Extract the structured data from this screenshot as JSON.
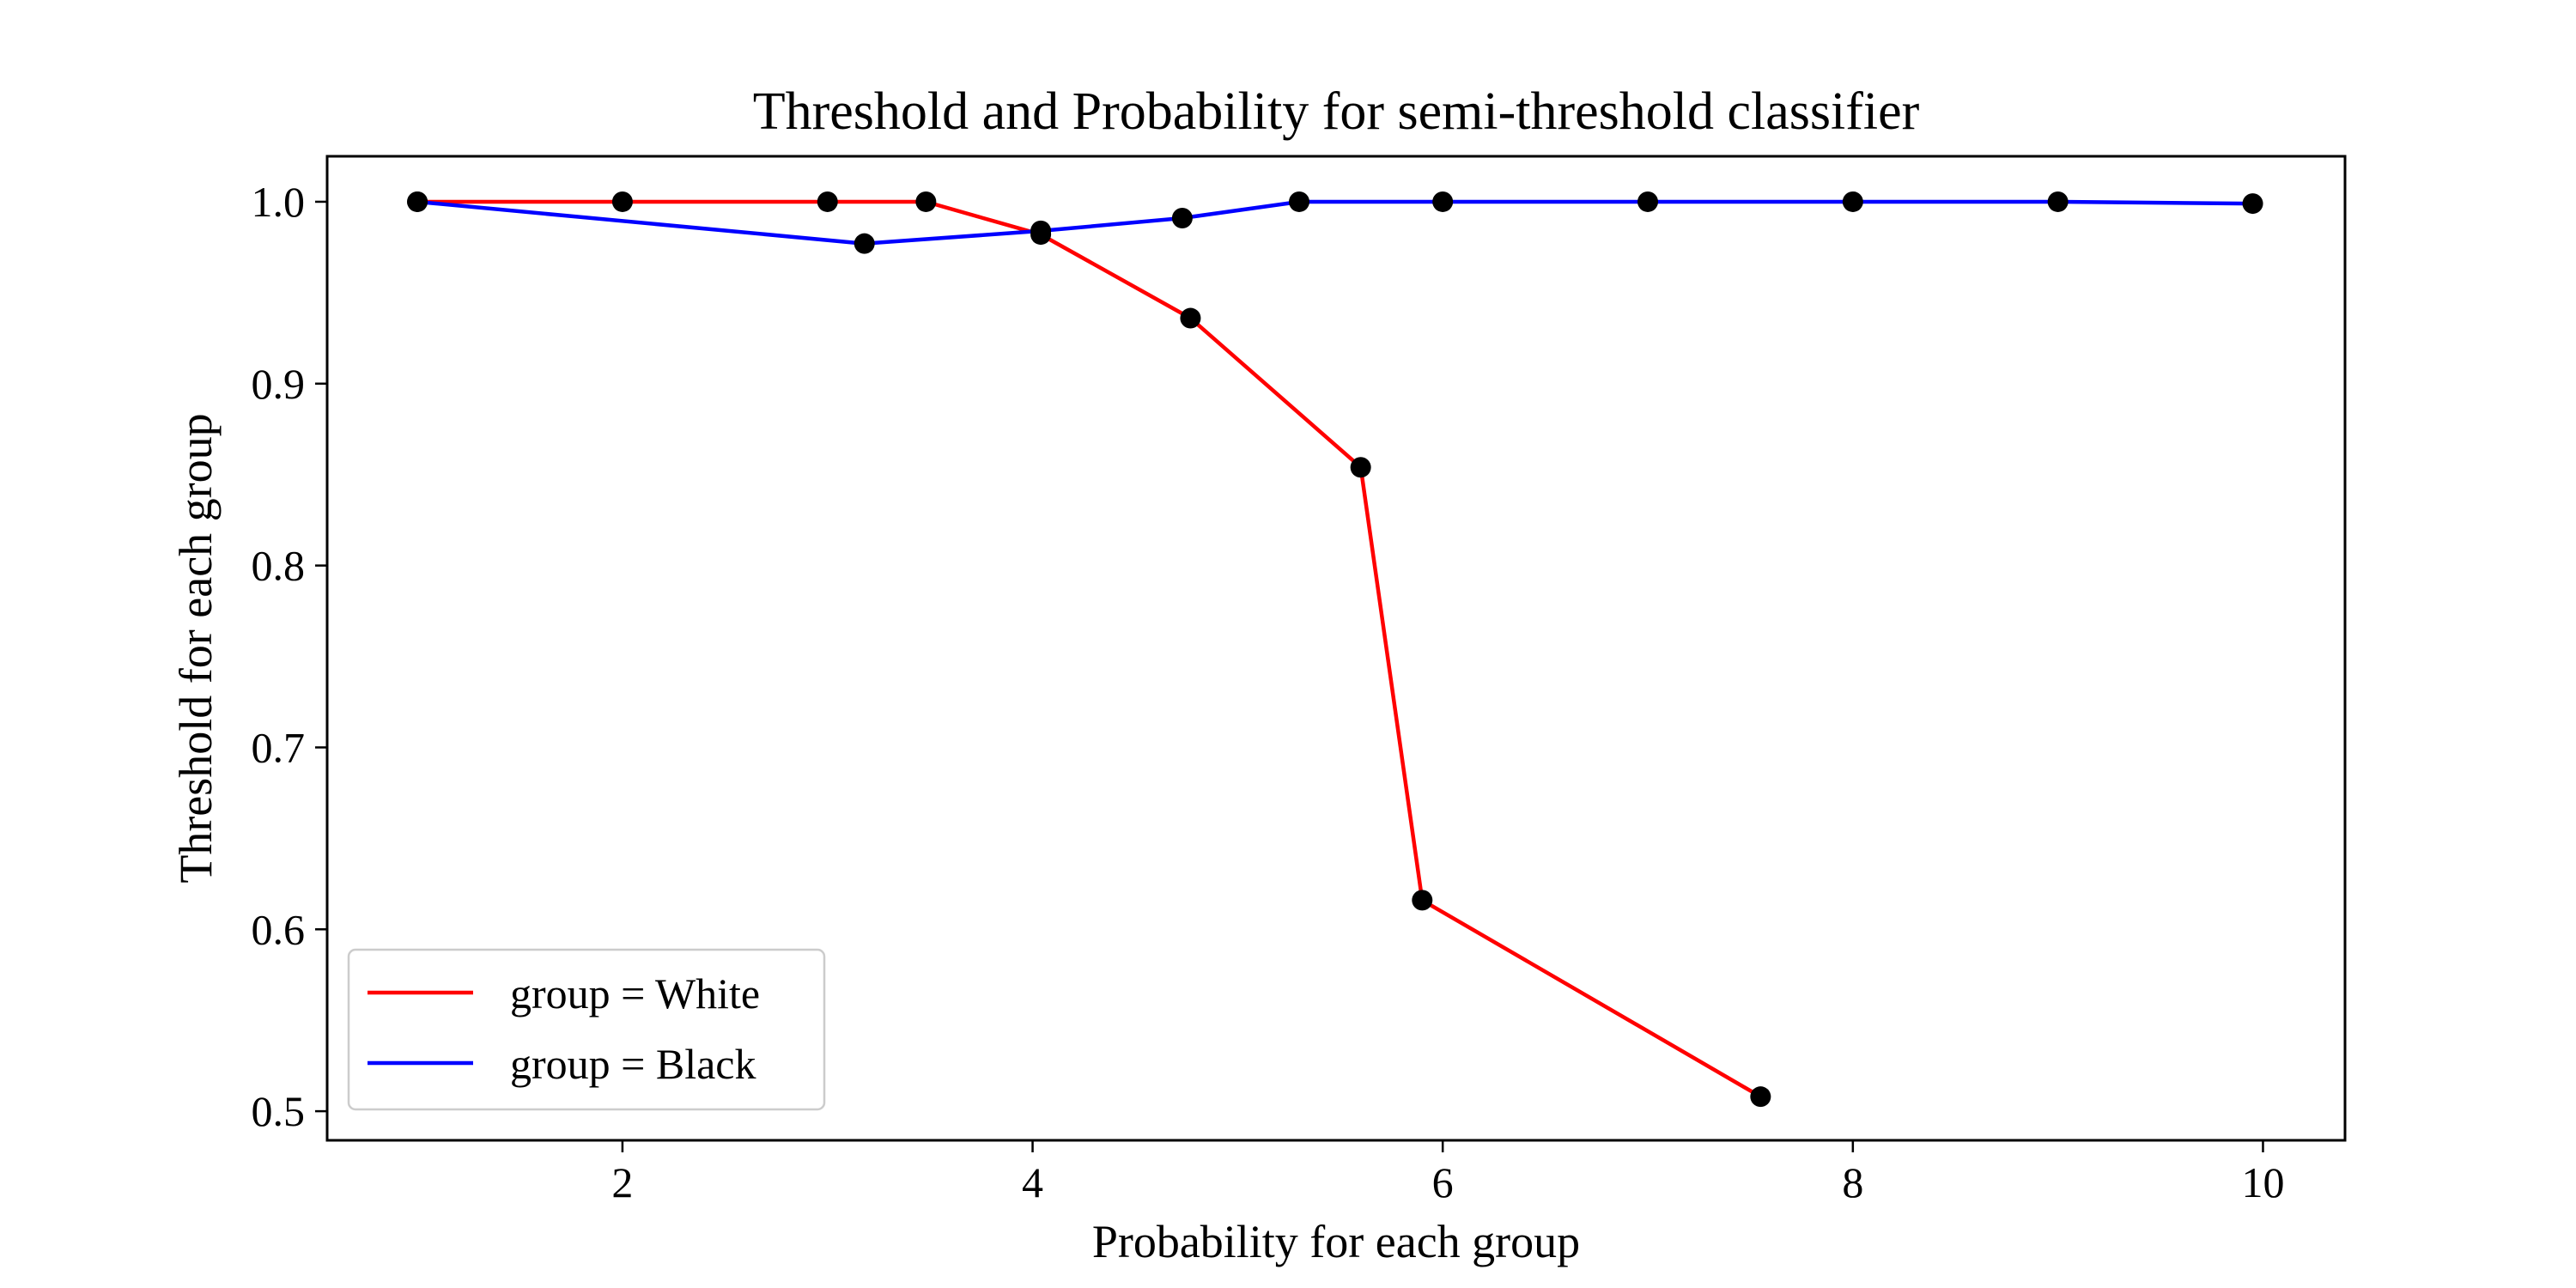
{
  "chart_data": {
    "type": "line",
    "title": "Threshold and Probability for semi-threshold classifier",
    "xlabel": "Probability for each group",
    "ylabel": "Threshold for each group",
    "xlim": [
      0.56,
      10.4
    ],
    "ylim": [
      0.484,
      1.025
    ],
    "xticks": [
      2,
      4,
      6,
      8,
      10
    ],
    "yticks": [
      0.5,
      0.6,
      0.7,
      0.8,
      0.9,
      1.0
    ],
    "grid": false,
    "legend_position": "lower-left",
    "marker_color": "#000000",
    "series": [
      {
        "name": "group = White",
        "color": "#ff0000",
        "x": [
          1.0,
          2.0,
          3.0,
          3.48,
          4.04,
          4.77,
          5.6,
          5.9,
          7.55
        ],
        "y": [
          1.0,
          1.0,
          1.0,
          1.0,
          0.982,
          0.936,
          0.854,
          0.616,
          0.508
        ]
      },
      {
        "name": "group = Black",
        "color": "#0000ff",
        "x": [
          1.0,
          3.18,
          4.04,
          4.73,
          5.3,
          6.0,
          7.0,
          8.0,
          9.0,
          9.95
        ],
        "y": [
          1.0,
          0.977,
          0.984,
          0.991,
          1.0,
          1.0,
          1.0,
          1.0,
          1.0,
          0.999
        ]
      }
    ]
  }
}
